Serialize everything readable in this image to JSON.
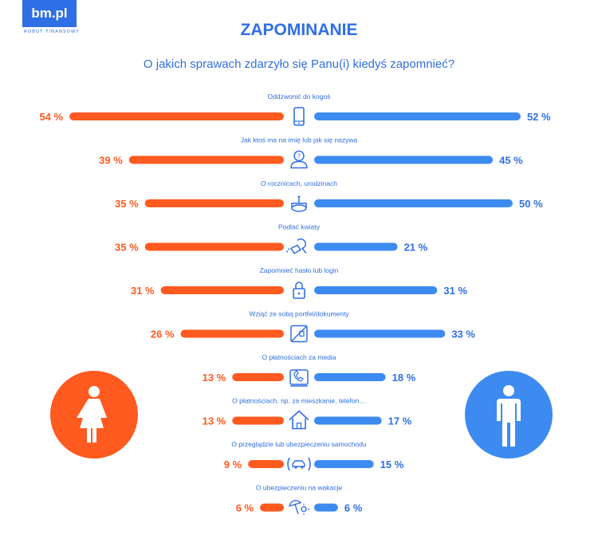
{
  "brand": {
    "logo": "bm.pl",
    "tagline": "ROBOT FINANSOWY"
  },
  "colors": {
    "female": "#ff5a1f",
    "male": "#3d8bf0",
    "text_blue": "#2f6fe5"
  },
  "chart_data": {
    "type": "bar",
    "title": "ZAPOMINANIE",
    "subtitle": "O jakich sprawach zdarzyło się Panu(i) kiedyś zapomnieć?",
    "categories": [
      "Oddzwonić do kogoś",
      "Jak ktoś ma na imię lub jak się nazywa",
      "O rocznicach, urodzinach",
      "Podlać kwiaty",
      "Zapomnieć hasło lub login",
      "Wziąć ze sobą portfel/dokumenty",
      "O płatnościach za media",
      "O płatnościach, np. za mieszkanie, telefon…",
      "O przeglądzie lub ubezpieczeniu samochodu",
      "O ubezpieczeniu na wakacje"
    ],
    "icons": [
      "phone-icon",
      "person-question-icon",
      "cake-icon",
      "watering-can-icon",
      "lock-icon",
      "wallet-icon",
      "bill-icon",
      "house-icon",
      "car-icon",
      "umbrella-sun-icon"
    ],
    "series": [
      {
        "values": [
          54,
          39,
          35,
          35,
          31,
          26,
          13,
          13,
          9,
          6
        ],
        "color": "#ff5a1f"
      },
      {
        "values": [
          52,
          45,
          50,
          21,
          31,
          33,
          18,
          17,
          15,
          6
        ],
        "color": "#3d8bf0"
      }
    ],
    "value_suffix": " %"
  }
}
